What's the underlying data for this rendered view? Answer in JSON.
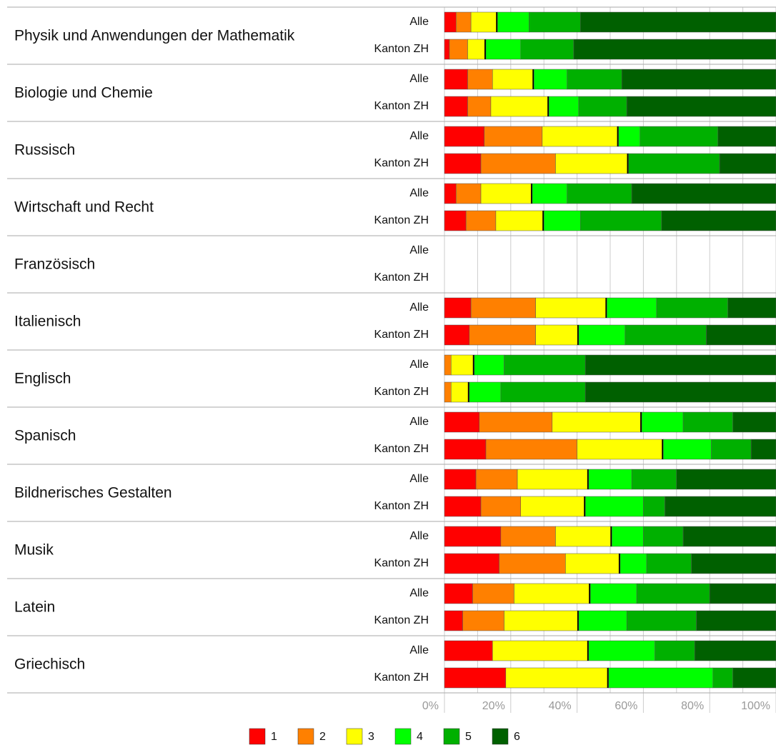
{
  "chart_data": {
    "type": "stacked-barh",
    "categories": [
      "Physik und Anwendungen der Mathematik",
      "Biologie und Chemie",
      "Russisch",
      "Wirtschaft und Recht",
      "Französisch",
      "Italienisch",
      "Englisch",
      "Spanisch",
      "Bildnerisches Gestalten",
      "Musik",
      "Latein",
      "Griechisch"
    ],
    "subcategories": [
      "Alle",
      "Kanton ZH"
    ],
    "series": [
      {
        "name": "1",
        "color": "#ff0000",
        "values": [
          [
            3.5,
            1.5
          ],
          [
            7,
            7
          ],
          [
            12,
            11
          ],
          [
            3.5,
            6.5
          ],
          [
            null,
            null
          ],
          [
            8,
            7.5
          ],
          [
            0,
            0
          ],
          [
            10.5,
            12.5
          ],
          [
            9.5,
            11
          ],
          [
            17,
            16.5
          ],
          [
            8.5,
            5.5
          ],
          [
            14.5,
            18.5
          ]
        ]
      },
      {
        "name": "2",
        "color": "#ff8000",
        "values": [
          [
            4.5,
            5.5
          ],
          [
            7.5,
            7
          ],
          [
            17.5,
            22.5
          ],
          [
            7.5,
            9
          ],
          [
            null,
            null
          ],
          [
            19.5,
            20
          ],
          [
            2,
            2
          ],
          [
            22,
            27.5
          ],
          [
            12.5,
            12
          ],
          [
            16.5,
            20
          ],
          [
            12.5,
            12.5
          ],
          [
            0,
            0
          ]
        ]
      },
      {
        "name": "3",
        "color": "#ffff00",
        "values": [
          [
            8,
            5.5
          ],
          [
            12.5,
            17.5
          ],
          [
            23,
            22
          ],
          [
            15.5,
            14.5
          ],
          [
            null,
            null
          ],
          [
            21.5,
            13
          ],
          [
            7,
            5.5
          ],
          [
            27,
            26
          ],
          [
            21.5,
            19.5
          ],
          [
            17,
            16.5
          ],
          [
            23,
            22.5
          ],
          [
            29,
            31
          ]
        ]
      },
      {
        "name": "4",
        "color": "#00ff00",
        "values": [
          [
            9.5,
            10.5
          ],
          [
            10,
            9
          ],
          [
            6.5,
            0
          ],
          [
            10.5,
            11
          ],
          [
            null,
            null
          ],
          [
            15,
            14
          ],
          [
            9,
            9.5
          ],
          [
            12.5,
            14.5
          ],
          [
            13,
            17.5
          ],
          [
            9.5,
            8
          ],
          [
            14,
            14.5
          ],
          [
            20,
            31.5
          ]
        ]
      },
      {
        "name": "5",
        "color": "#00b000",
        "values": [
          [
            15.5,
            16
          ],
          [
            16.5,
            14.5
          ],
          [
            23.5,
            27.5
          ],
          [
            19.5,
            24.5
          ],
          [
            null,
            null
          ],
          [
            21.5,
            24.5
          ],
          [
            24.5,
            25.5
          ],
          [
            15,
            12
          ],
          [
            13.5,
            6.5
          ],
          [
            12,
            13.5
          ],
          [
            22,
            21
          ],
          [
            12,
            6
          ]
        ]
      },
      {
        "name": "6",
        "color": "#006000",
        "values": [
          [
            59,
            61
          ],
          [
            46.5,
            45
          ],
          [
            17.5,
            17
          ],
          [
            43.5,
            34.5
          ],
          [
            null,
            null
          ],
          [
            14.5,
            21
          ],
          [
            57.5,
            57.5
          ],
          [
            13,
            7.5
          ],
          [
            30,
            33.5
          ],
          [
            28,
            25.5
          ],
          [
            20,
            24
          ],
          [
            24.5,
            13
          ]
        ]
      }
    ],
    "xlim": [
      0,
      100
    ],
    "xticks": [
      {
        "value": 0,
        "label": "0%"
      },
      {
        "value": 20,
        "label": "20%"
      },
      {
        "value": 40,
        "label": "40%"
      },
      {
        "value": 60,
        "label": "60%"
      },
      {
        "value": 80,
        "label": "80%"
      },
      {
        "value": 100,
        "label": "100%"
      }
    ],
    "xminorticks": [
      10,
      30,
      50,
      70,
      90
    ],
    "grid": true,
    "legend": "bottom"
  }
}
